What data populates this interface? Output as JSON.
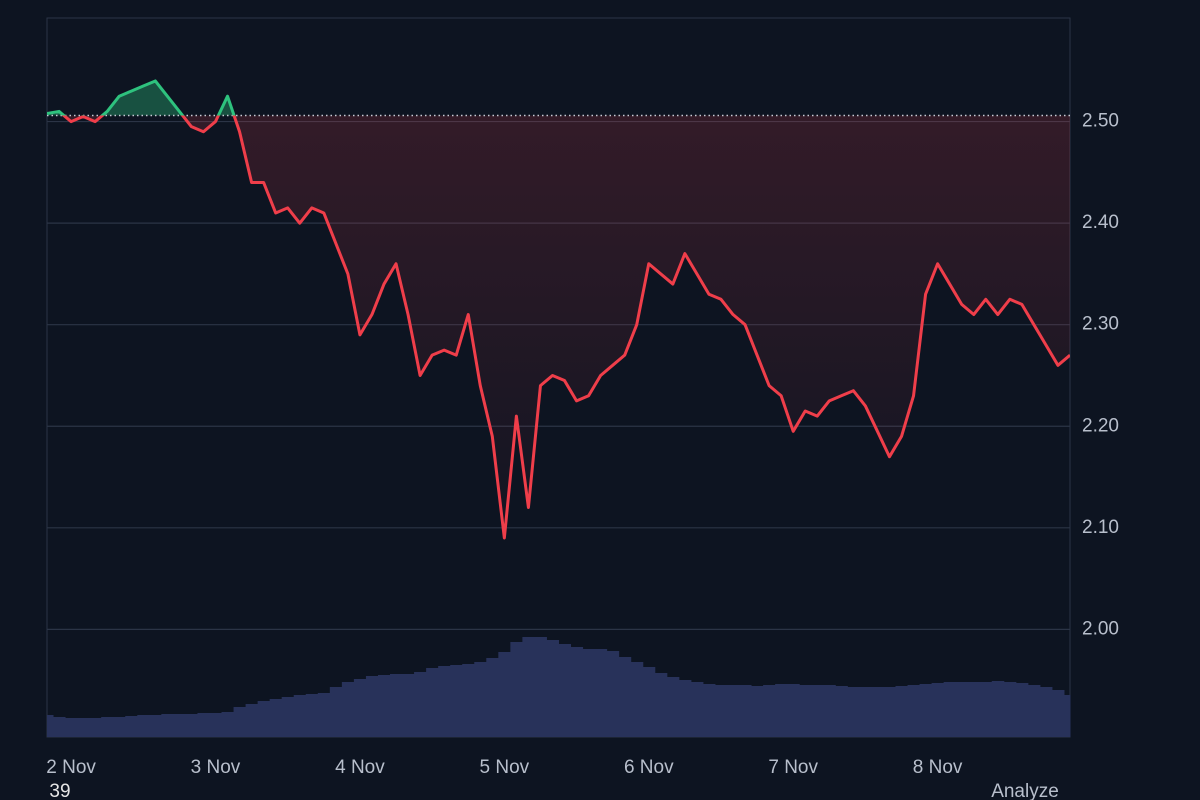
{
  "chart_data": {
    "type": "line",
    "categories": [
      null,
      null,
      "2 Nov",
      null,
      null,
      null,
      null,
      null,
      null,
      null,
      null,
      null,
      null,
      null,
      "3 Nov",
      null,
      null,
      null,
      null,
      null,
      null,
      null,
      null,
      null,
      null,
      null,
      "4 Nov",
      null,
      null,
      null,
      null,
      null,
      null,
      null,
      null,
      null,
      null,
      null,
      "5 Nov",
      null,
      null,
      null,
      null,
      null,
      null,
      null,
      null,
      null,
      null,
      null,
      "6 Nov",
      null,
      null,
      null,
      null,
      null,
      null,
      null,
      null,
      null,
      null,
      null,
      "7 Nov",
      null,
      null,
      null,
      null,
      null,
      null,
      null,
      null,
      null,
      null,
      null,
      "8 Nov",
      null,
      null,
      null,
      null,
      null,
      null,
      null,
      null,
      null,
      null,
      null
    ],
    "series": [
      {
        "values": [
          2.508,
          2.51,
          2.5,
          2.505,
          2.5,
          2.51,
          2.525,
          2.53,
          2.535,
          2.54,
          2.525,
          2.51,
          2.495,
          2.49,
          2.5,
          2.525,
          2.49,
          2.44,
          2.44,
          2.41,
          2.415,
          2.4,
          2.415,
          2.41,
          2.38,
          2.35,
          2.29,
          2.31,
          2.34,
          2.36,
          2.31,
          2.25,
          2.27,
          2.275,
          2.27,
          2.31,
          2.24,
          2.19,
          2.09,
          2.21,
          2.12,
          2.24,
          2.25,
          2.245,
          2.225,
          2.23,
          2.25,
          2.26,
          2.27,
          2.3,
          2.36,
          2.35,
          2.34,
          2.37,
          2.35,
          2.33,
          2.325,
          2.31,
          2.3,
          2.27,
          2.24,
          2.23,
          2.195,
          2.215,
          2.21,
          2.225,
          2.23,
          2.235,
          2.22,
          2.195,
          2.17,
          2.19,
          2.23,
          2.33,
          2.36,
          2.34,
          2.32,
          2.31,
          2.325,
          2.31,
          2.325,
          2.32,
          2.3,
          2.28,
          2.26,
          2.27
        ],
        "color_up": "#2ec27e",
        "color_down": "#ef3e4a"
      },
      {
        "type": "bar",
        "axis": "y2",
        "color": "#28325a",
        "values": [
          22,
          20,
          19,
          19,
          19,
          20,
          20,
          21,
          22,
          22,
          23,
          23,
          23,
          24,
          24,
          25,
          30,
          33,
          36,
          38,
          40,
          42,
          43,
          44,
          50,
          55,
          58,
          61,
          62,
          63,
          63,
          65,
          69,
          71,
          72,
          73,
          75,
          79,
          85,
          95,
          100,
          100,
          97,
          93,
          90,
          88,
          88,
          86,
          80,
          75,
          70,
          64,
          60,
          57,
          55,
          53,
          52,
          52,
          52,
          51,
          52,
          53,
          53,
          52,
          52,
          52,
          51,
          50,
          50,
          50,
          50,
          51,
          52,
          53,
          54,
          55,
          55,
          55,
          55,
          56,
          55,
          54,
          52,
          50,
          47,
          42
        ]
      }
    ],
    "baseline": 2.506,
    "ylim": [
      1.894,
      2.602
    ],
    "yticks": [
      {
        "value": 2.0,
        "label": "2.00"
      },
      {
        "value": 2.1,
        "label": "2.10"
      },
      {
        "value": 2.2,
        "label": "2.20"
      },
      {
        "value": 2.3,
        "label": "2.30"
      },
      {
        "value": 2.4,
        "label": "2.40"
      },
      {
        "value": 2.5,
        "label": "2.50"
      }
    ],
    "y2lim": [
      0,
      719
    ],
    "grid": true
  },
  "overlay": {
    "count": "39",
    "action": "Analyze"
  }
}
